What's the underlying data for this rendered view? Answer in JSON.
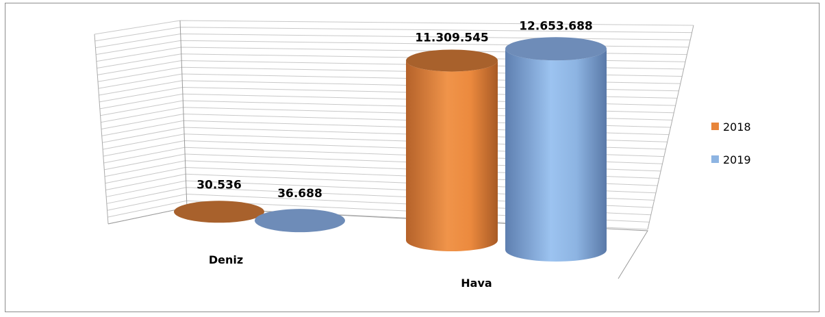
{
  "chart_data": {
    "type": "bar",
    "style": "3d-cylinder",
    "categories": [
      "Deniz",
      "Hava"
    ],
    "series": [
      {
        "name": "2018",
        "values": [
          30536,
          11309545
        ],
        "labels": [
          "30.536",
          "11.309.545"
        ],
        "color": "#E8853A"
      },
      {
        "name": "2019",
        "values": [
          36688,
          12653688
        ],
        "labels": [
          "36.688",
          "12.653.688"
        ],
        "color": "#8DB4E2"
      }
    ],
    "title": "",
    "xlabel": "",
    "ylabel": "",
    "ylim": [
      0,
      14000000
    ],
    "grid": true,
    "legend_position": "right"
  },
  "colors": {
    "orange_top": "#A8612C",
    "blue_top": "#6E8CB8",
    "grid": "#c8c8c8",
    "frame": "#8c8c8c"
  }
}
